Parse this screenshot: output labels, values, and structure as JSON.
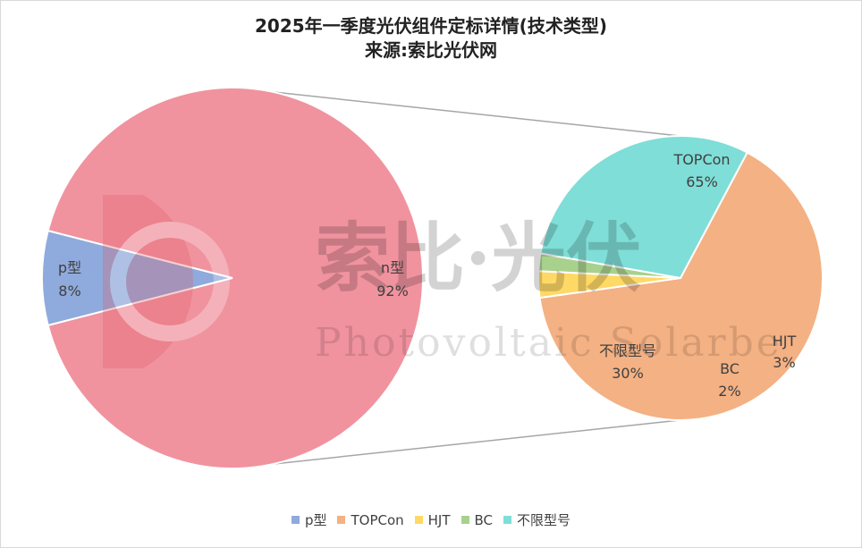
{
  "chart_data": {
    "type": "pie",
    "title_line1": "2025年一季度光伏组件定标详情(技术类型)",
    "title_line2": "来源:索比光伏网",
    "main_pie": {
      "slices": [
        {
          "label": "p型",
          "percent_label": "8%",
          "value": 8,
          "color": "#8faadc"
        },
        {
          "label": "n型",
          "percent_label": "92%",
          "value": 92,
          "color": "#f0939f"
        }
      ]
    },
    "sub_pie": {
      "slices": [
        {
          "label": "TOPCon",
          "percent_label": "65%",
          "value": 65,
          "color": "#f4b183"
        },
        {
          "label": "HJT",
          "percent_label": "3%",
          "value": 3,
          "color": "#ffd966"
        },
        {
          "label": "BC",
          "percent_label": "2%",
          "value": 2,
          "color": "#a9d18e"
        },
        {
          "label": "不限型号",
          "percent_label": "30%",
          "value": 30,
          "color": "#7fded7"
        }
      ]
    },
    "legend": [
      {
        "label": "p型",
        "color": "#8faadc"
      },
      {
        "label": "TOPCon",
        "color": "#f4b183"
      },
      {
        "label": "HJT",
        "color": "#ffd966"
      },
      {
        "label": "BC",
        "color": "#a9d18e"
      },
      {
        "label": "不限型号",
        "color": "#7fded7"
      }
    ],
    "legend_position": "bottom"
  },
  "watermark": {
    "chinese": "索比·光伏",
    "english": "Photovoltaic Solarbe",
    "logo_color": "#e05a62"
  }
}
